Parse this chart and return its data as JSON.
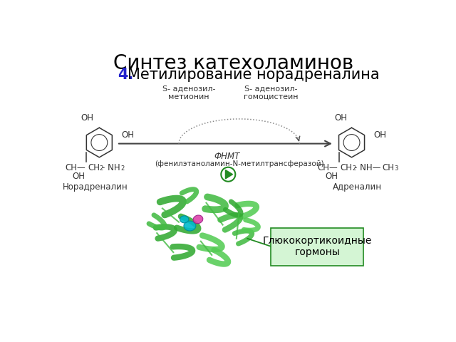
{
  "title": "Синтез катехоламинов",
  "subtitle_number": "4.",
  "subtitle_text": "Метилирование норадреналина",
  "title_fontsize": 20,
  "subtitle_fontsize": 15,
  "subtitle_color": "#2222cc",
  "subtitle_text_color": "#000000",
  "bg_color": "#ffffff",
  "s_adenosil_metionin": "S- аденозил-\nметионин",
  "s_adenosil_gomocistejn": "S- аденозил-\nгомоцистеин",
  "fnmt_label": "ФНМТ",
  "enzyme_label": "(фенилэтаноламин-N-метилтрансферазой)",
  "noradrenalin_label": "Норадреналин",
  "adrenalin_label": "Адреналин",
  "glyukokortikoidnye_label": "Глюкокортикоидные\nгормоны",
  "box_facecolor": "#d4f5d4",
  "box_edgecolor": "#228B22",
  "arrow_color": "#555555",
  "ring_color": "#333333",
  "text_color": "#333333",
  "protein_color1": "#33aa33",
  "protein_color2": "#44bb44",
  "protein_color3": "#55cc55",
  "ligand_cyan": "#00bbcc",
  "ligand_pink": "#dd44aa",
  "icon_color": "#228B22"
}
